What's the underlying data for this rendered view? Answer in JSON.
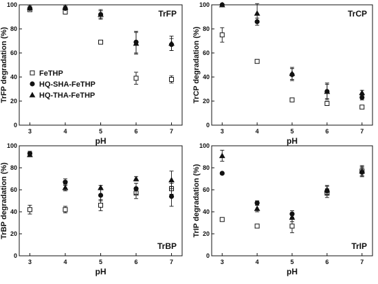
{
  "chart_data": [
    {
      "type": "scatter",
      "title": "TrFP",
      "xlabel": "pH",
      "ylabel": "TrFP degradation (%)",
      "x": [
        3,
        4,
        5,
        6,
        7
      ],
      "xlim": [
        2.7,
        7.3
      ],
      "ylim": [
        0,
        100
      ],
      "yticks": [
        0,
        20,
        40,
        60,
        80,
        100
      ],
      "legend": "center-left",
      "series": [
        {
          "name": "FeTHP",
          "marker": "open-square",
          "values": [
            96,
            94,
            69,
            39,
            38
          ],
          "errors": [
            1,
            1,
            1,
            5,
            3
          ]
        },
        {
          "name": "HQ-SHA-FeTHP",
          "marker": "filled-circle",
          "values": [
            97,
            97,
            92,
            69,
            67
          ],
          "errors": [
            1,
            1,
            3,
            9,
            5
          ]
        },
        {
          "name": "HQ-THA-FeTHP",
          "marker": "filled-triangle",
          "values": [
            98,
            98,
            92,
            68,
            68
          ],
          "errors": [
            1,
            1,
            4,
            9,
            6
          ]
        }
      ]
    },
    {
      "type": "scatter",
      "title": "TrCP",
      "xlabel": "pH",
      "ylabel": "TrCP degradation (%)",
      "x": [
        3,
        4,
        5,
        6,
        7
      ],
      "xlim": [
        2.7,
        7.3
      ],
      "ylim": [
        0,
        100
      ],
      "yticks": [
        0,
        20,
        40,
        60,
        80,
        100
      ],
      "series": [
        {
          "name": "FeTHP",
          "marker": "open-square",
          "values": [
            75,
            53,
            21,
            18,
            15
          ],
          "errors": [
            6,
            1,
            1,
            1,
            1
          ]
        },
        {
          "name": "HQ-SHA-FeTHP",
          "marker": "filled-circle",
          "values": [
            100,
            86,
            42,
            28,
            23
          ],
          "errors": [
            0,
            3,
            5,
            6,
            2
          ]
        },
        {
          "name": "HQ-THA-FeTHP",
          "marker": "filled-triangle",
          "values": [
            100,
            93,
            43,
            28,
            27
          ],
          "errors": [
            0,
            8,
            5,
            7,
            2
          ]
        }
      ]
    },
    {
      "type": "scatter",
      "title": "TrBP",
      "xlabel": "pH",
      "ylabel": "TrBP degradation (%)",
      "x": [
        3,
        4,
        5,
        6,
        7
      ],
      "xlim": [
        2.7,
        7.3
      ],
      "ylim": [
        0,
        100
      ],
      "yticks": [
        0,
        20,
        40,
        60,
        80,
        100
      ],
      "series": [
        {
          "name": "FeTHP",
          "marker": "open-square",
          "values": [
            42,
            42,
            46,
            57,
            61
          ],
          "errors": [
            4,
            3,
            5,
            5,
            5
          ]
        },
        {
          "name": "HQ-SHA-FeTHP",
          "marker": "filled-circle",
          "values": [
            93,
            67,
            55,
            61,
            54
          ],
          "errors": [
            2,
            3,
            5,
            5,
            9
          ]
        },
        {
          "name": "HQ-THA-FeTHP",
          "marker": "filled-triangle",
          "values": [
            92,
            62,
            62,
            70,
            69
          ],
          "errors": [
            2,
            3,
            2,
            2,
            8
          ]
        }
      ]
    },
    {
      "type": "scatter",
      "title": "TrIP",
      "xlabel": "pH",
      "ylabel": "TrIP degradation (%)",
      "x": [
        3,
        4,
        5,
        6,
        7
      ],
      "xlim": [
        2.7,
        7.3
      ],
      "ylim": [
        0,
        100
      ],
      "yticks": [
        0,
        20,
        40,
        60,
        80,
        100
      ],
      "series": [
        {
          "name": "FeTHP",
          "marker": "open-square",
          "values": [
            33,
            27,
            27,
            57,
            77
          ],
          "errors": [
            1,
            1,
            6,
            4,
            4
          ]
        },
        {
          "name": "HQ-SHA-FeTHP",
          "marker": "filled-circle",
          "values": [
            75,
            48,
            38,
            59,
            76
          ],
          "errors": [
            1,
            2,
            3,
            4,
            4
          ]
        },
        {
          "name": "HQ-THA-FeTHP",
          "marker": "filled-triangle",
          "values": [
            91,
            43,
            35,
            60,
            77
          ],
          "errors": [
            5,
            3,
            4,
            4,
            5
          ]
        }
      ]
    }
  ]
}
